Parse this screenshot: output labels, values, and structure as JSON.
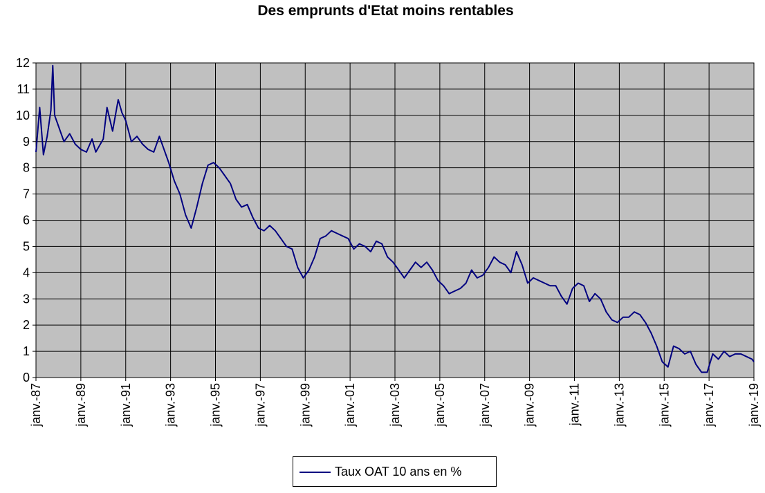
{
  "chart_data": {
    "type": "line",
    "title": "Des emprunts d'Etat moins rentables",
    "xlabel": "",
    "ylabel": "",
    "ylim": [
      0,
      12
    ],
    "xlim": [
      "1987-01",
      "2019-01"
    ],
    "grid": true,
    "legend_position": "bottom",
    "plot_background": "#c0c0c0",
    "series_color": "#000080",
    "y_ticks": [
      "0",
      "1",
      "2",
      "3",
      "4",
      "5",
      "6",
      "7",
      "8",
      "9",
      "10",
      "11",
      "12"
    ],
    "x_ticks": [
      "janv.-87",
      "janv.-89",
      "janv.-91",
      "janv.-93",
      "janv.-95",
      "janv.-97",
      "janv.-99",
      "janv.-01",
      "janv.-03",
      "janv.-05",
      "janv.-07",
      "janv.-09",
      "janv.-11",
      "janv.-13",
      "janv.-15",
      "janv.-17",
      "janv.-19"
    ],
    "series": [
      {
        "name": "Taux OAT 10 ans en %",
        "x": [
          "1987-01",
          "1987-03",
          "1987-05",
          "1987-07",
          "1987-09",
          "1987-10",
          "1987-11",
          "1988-01",
          "1988-04",
          "1988-07",
          "1988-10",
          "1989-01",
          "1989-04",
          "1989-07",
          "1989-09",
          "1990-01",
          "1990-03",
          "1990-06",
          "1990-09",
          "1990-11",
          "1991-01",
          "1991-04",
          "1991-07",
          "1991-10",
          "1992-01",
          "1992-04",
          "1992-07",
          "1992-09",
          "1992-12",
          "1993-03",
          "1993-06",
          "1993-09",
          "1993-12",
          "1994-03",
          "1994-06",
          "1994-09",
          "1994-12",
          "1995-03",
          "1995-06",
          "1995-09",
          "1995-12",
          "1996-03",
          "1996-06",
          "1996-09",
          "1996-12",
          "1997-03",
          "1997-06",
          "1997-09",
          "1997-12",
          "1998-03",
          "1998-06",
          "1998-09",
          "1998-12",
          "1999-03",
          "1999-06",
          "1999-09",
          "1999-12",
          "2000-03",
          "2000-06",
          "2000-09",
          "2000-12",
          "2001-03",
          "2001-06",
          "2001-09",
          "2001-12",
          "2002-03",
          "2002-06",
          "2002-09",
          "2002-12",
          "2003-03",
          "2003-06",
          "2003-09",
          "2003-12",
          "2004-03",
          "2004-06",
          "2004-09",
          "2004-12",
          "2005-03",
          "2005-06",
          "2005-09",
          "2005-12",
          "2006-03",
          "2006-06",
          "2006-09",
          "2006-12",
          "2007-03",
          "2007-06",
          "2007-09",
          "2007-12",
          "2008-03",
          "2008-06",
          "2008-09",
          "2008-12",
          "2009-03",
          "2009-06",
          "2009-09",
          "2009-12",
          "2010-03",
          "2010-06",
          "2010-09",
          "2010-12",
          "2011-03",
          "2011-06",
          "2011-09",
          "2011-12",
          "2012-03",
          "2012-06",
          "2012-09",
          "2012-12",
          "2013-03",
          "2013-06",
          "2013-09",
          "2013-12",
          "2014-03",
          "2014-06",
          "2014-09",
          "2014-12",
          "2015-03",
          "2015-06",
          "2015-09",
          "2015-12",
          "2016-03",
          "2016-06",
          "2016-09",
          "2016-12",
          "2017-03",
          "2017-06",
          "2017-09",
          "2017-12",
          "2018-03",
          "2018-06",
          "2018-09",
          "2018-12",
          "2019-01"
        ],
        "values": [
          8.6,
          10.3,
          8.5,
          9.2,
          10.2,
          11.9,
          10.0,
          9.6,
          9.0,
          9.3,
          8.9,
          8.7,
          8.6,
          9.1,
          8.6,
          9.1,
          10.3,
          9.4,
          10.6,
          10.1,
          9.8,
          9.0,
          9.2,
          8.9,
          8.7,
          8.6,
          9.2,
          8.8,
          8.2,
          7.5,
          7.0,
          6.2,
          5.7,
          6.5,
          7.4,
          8.1,
          8.2,
          8.0,
          7.7,
          7.4,
          6.8,
          6.5,
          6.6,
          6.1,
          5.7,
          5.6,
          5.8,
          5.6,
          5.3,
          5.0,
          4.9,
          4.2,
          3.8,
          4.1,
          4.6,
          5.3,
          5.4,
          5.6,
          5.5,
          5.4,
          5.3,
          4.9,
          5.1,
          5.0,
          4.8,
          5.2,
          5.1,
          4.6,
          4.4,
          4.1,
          3.8,
          4.1,
          4.4,
          4.2,
          4.4,
          4.1,
          3.7,
          3.5,
          3.2,
          3.3,
          3.4,
          3.6,
          4.1,
          3.8,
          3.9,
          4.2,
          4.6,
          4.4,
          4.3,
          4.0,
          4.8,
          4.3,
          3.6,
          3.8,
          3.7,
          3.6,
          3.5,
          3.5,
          3.1,
          2.8,
          3.4,
          3.6,
          3.5,
          2.9,
          3.2,
          3.0,
          2.5,
          2.2,
          2.1,
          2.3,
          2.3,
          2.5,
          2.4,
          2.1,
          1.7,
          1.2,
          0.6,
          0.4,
          1.2,
          1.1,
          0.9,
          1.0,
          0.5,
          0.2,
          0.2,
          0.9,
          0.7,
          1.0,
          0.8,
          0.9,
          0.9,
          0.8,
          0.7,
          0.6
        ]
      }
    ]
  }
}
